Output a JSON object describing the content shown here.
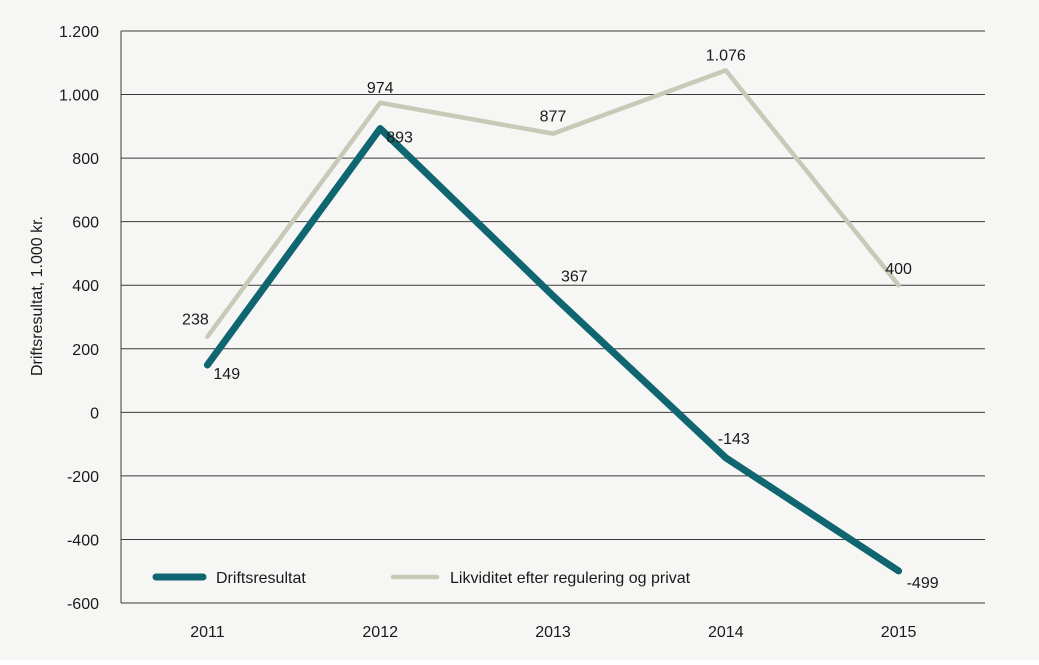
{
  "chart_data": {
    "type": "line",
    "categories": [
      "2011",
      "2012",
      "2013",
      "2014",
      "2015"
    ],
    "series": [
      {
        "name": "Driftsresultat",
        "values": [
          149,
          893,
          367,
          -143,
          -499
        ],
        "labels": [
          "149",
          "893",
          "367",
          "-143",
          "-499"
        ],
        "color": "#0f6570"
      },
      {
        "name": "Likviditet efter regulering og privat",
        "values": [
          238,
          974,
          877,
          1076,
          400
        ],
        "labels": [
          "238",
          "974",
          "877",
          "1.076",
          "400"
        ],
        "color": "#c9c9b8"
      }
    ],
    "ylabel": "Driftsresultat, 1.000 kr.",
    "ylim": [
      -600,
      1200
    ],
    "yticks": [
      {
        "value": 1200,
        "label": "1.200"
      },
      {
        "value": 1000,
        "label": "1.000"
      },
      {
        "value": 800,
        "label": "800"
      },
      {
        "value": 600,
        "label": "600"
      },
      {
        "value": 400,
        "label": "400"
      },
      {
        "value": 200,
        "label": "200"
      },
      {
        "value": 0,
        "label": "0"
      },
      {
        "value": -200,
        "label": "-200"
      },
      {
        "value": -400,
        "label": "-400"
      },
      {
        "value": -600,
        "label": "-600"
      }
    ],
    "grid": true,
    "legend_position": "bottom-left"
  }
}
